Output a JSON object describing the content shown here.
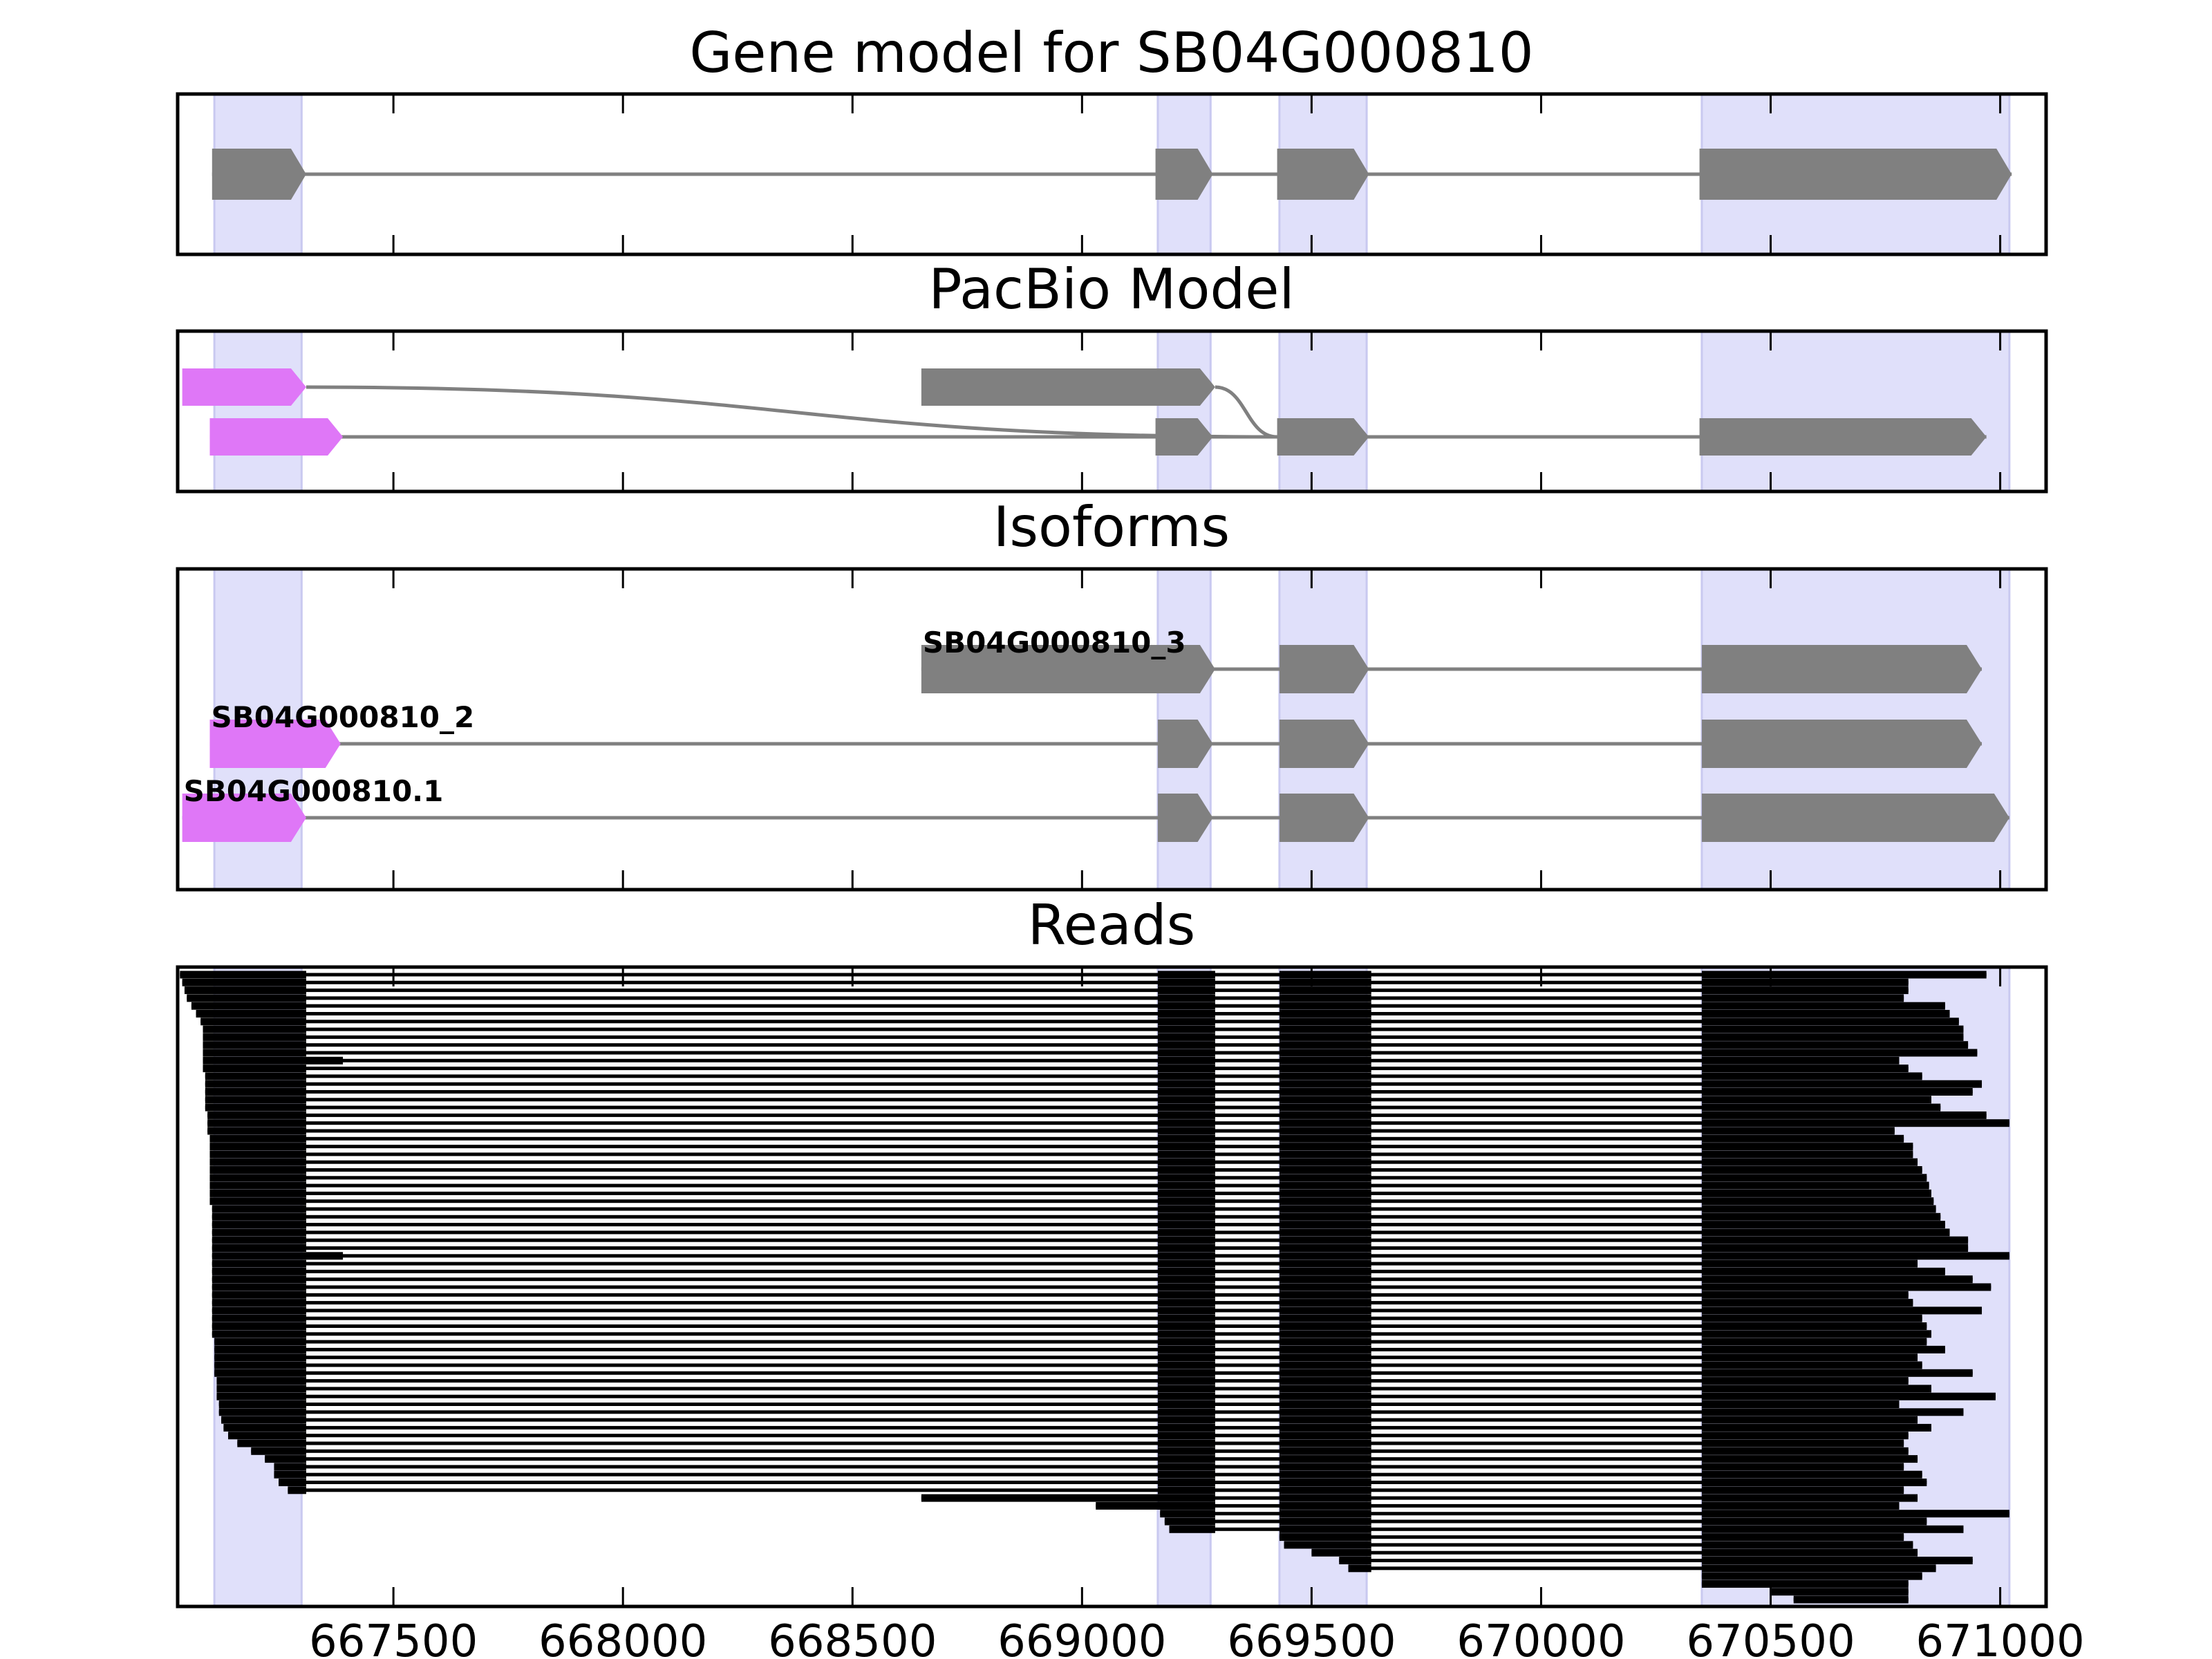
{
  "chart_data": {
    "type": "gene-model",
    "xlim": [
      667030,
      671100
    ],
    "xticks": [
      667500,
      668000,
      668500,
      669000,
      669500,
      670000,
      670500,
      671000
    ],
    "xtick_labels": [
      "667500",
      "668000",
      "668500",
      "669000",
      "669500",
      "670000",
      "670500",
      "671000"
    ],
    "exon_highlights": [
      [
        667110,
        667300
      ],
      [
        669165,
        669280
      ],
      [
        669430,
        669620
      ],
      [
        670350,
        671020
      ]
    ],
    "colors": {
      "exon": "#808080",
      "utr5": "#df77f7",
      "highlight": "#e0e0fa",
      "read": "#000000"
    },
    "panels": [
      {
        "title": "Gene model for SB04G000810",
        "tracks": [
          {
            "row": 1,
            "start": 667105,
            "end": 671025,
            "exons": [
              [
                667105,
                667310,
                "cds"
              ],
              [
                669160,
                669285,
                "cds"
              ],
              [
                669425,
                669625,
                "cds"
              ],
              [
                670345,
                671025,
                "cds"
              ]
            ]
          }
        ]
      },
      {
        "title": "PacBio Model",
        "tracks": [
          {
            "row": 0,
            "start": 667040,
            "end": 669290,
            "exons": [
              [
                667040,
                667310,
                "utr"
              ],
              [
                668650,
                669290,
                "cds"
              ]
            ]
          },
          {
            "row": 1,
            "start": 667100,
            "end": 670970,
            "exons": [
              [
                667100,
                667390,
                "utr"
              ],
              [
                669160,
                669285,
                "cds"
              ],
              [
                669425,
                669625,
                "cds"
              ],
              [
                670345,
                670970,
                "cds"
              ]
            ]
          }
        ],
        "curve": {
          "from": [
            667310,
            0
          ],
          "to": [
            669425,
            1
          ]
        },
        "curve2": {
          "from": [
            669290,
            0
          ],
          "to": [
            669425,
            1
          ]
        }
      },
      {
        "title": "Isoforms",
        "tracks": [
          {
            "row": 0,
            "label": "SB04G000810_3",
            "start": 668650,
            "end": 670960,
            "exons": [
              [
                668650,
                669290,
                "cds"
              ],
              [
                669430,
                669625,
                "cds"
              ],
              [
                670350,
                670960,
                "cds"
              ]
            ]
          },
          {
            "row": 1,
            "label": "SB04G000810_2",
            "start": 667100,
            "end": 670960,
            "exons": [
              [
                667100,
                667385,
                "utr"
              ],
              [
                669165,
                669285,
                "cds"
              ],
              [
                669430,
                669625,
                "cds"
              ],
              [
                670350,
                670960,
                "cds"
              ]
            ]
          },
          {
            "row": 2,
            "label": "SB04G000810.1",
            "start": 667040,
            "end": 671020,
            "exons": [
              [
                667040,
                667310,
                "utr"
              ],
              [
                669165,
                669285,
                "cds"
              ],
              [
                669430,
                669625,
                "cds"
              ],
              [
                670350,
                671020,
                "cds"
              ]
            ]
          }
        ]
      },
      {
        "title": "Reads",
        "read_starts": [
          667035,
          667040,
          667045,
          667050,
          667060,
          667070,
          667080,
          667085,
          667085,
          667085,
          667085,
          667085,
          667085,
          667090,
          667090,
          667090,
          667090,
          667090,
          667095,
          667095,
          667095,
          667100,
          667100,
          667100,
          667100,
          667100,
          667100,
          667100,
          667100,
          667100,
          667105,
          667105,
          667105,
          667105,
          667105,
          667105,
          667105,
          667105,
          667105,
          667105,
          667105,
          667105,
          667105,
          667105,
          667105,
          667105,
          667105,
          667110,
          667110,
          667110,
          667110,
          667110,
          667115,
          667115,
          667115,
          667120,
          667120,
          667125,
          667130,
          667140,
          667160,
          667190,
          667220,
          667240,
          667240,
          667250,
          667270
        ],
        "read_ends": [
          670970,
          670800,
          670800,
          670790,
          670880,
          670890,
          670910,
          670920,
          670920,
          670930,
          670950,
          670780,
          670800,
          670830,
          670960,
          670940,
          670850,
          670870,
          670970,
          671020,
          670770,
          670790,
          670810,
          670810,
          670820,
          670830,
          670840,
          670845,
          670850,
          670855,
          670860,
          670870,
          670880,
          670890,
          670930,
          670930,
          671020,
          670820,
          670880,
          670940,
          670980,
          670800,
          670810,
          670960,
          670830,
          670840,
          670850,
          670840,
          670880,
          670820,
          670830,
          670940,
          670800,
          670850,
          670990,
          670780,
          670920,
          670820,
          670850,
          670800,
          670790,
          670800,
          670820,
          670790,
          670830,
          670840,
          670790
        ],
        "mid_reads": [
          {
            "start": 668650,
            "end": 670820
          },
          {
            "start": 669030,
            "end": 670780
          },
          {
            "start": 669170,
            "end": 671020
          },
          {
            "start": 669180,
            "end": 670840
          },
          {
            "start": 669190,
            "end": 670920
          },
          {
            "start": 669430,
            "end": 670790
          },
          {
            "start": 669440,
            "end": 670810
          },
          {
            "start": 669500,
            "end": 670820
          },
          {
            "start": 669560,
            "end": 670940
          },
          {
            "start": 669580,
            "end": 670860
          },
          {
            "start": 670350,
            "end": 670830
          },
          {
            "start": 670350,
            "end": 670800
          },
          {
            "start": 670500,
            "end": 670800
          },
          {
            "start": 670550,
            "end": 670800
          }
        ],
        "extended_first_exon": [
          [
            11,
            667390
          ],
          [
            36,
            667390
          ]
        ]
      }
    ]
  }
}
